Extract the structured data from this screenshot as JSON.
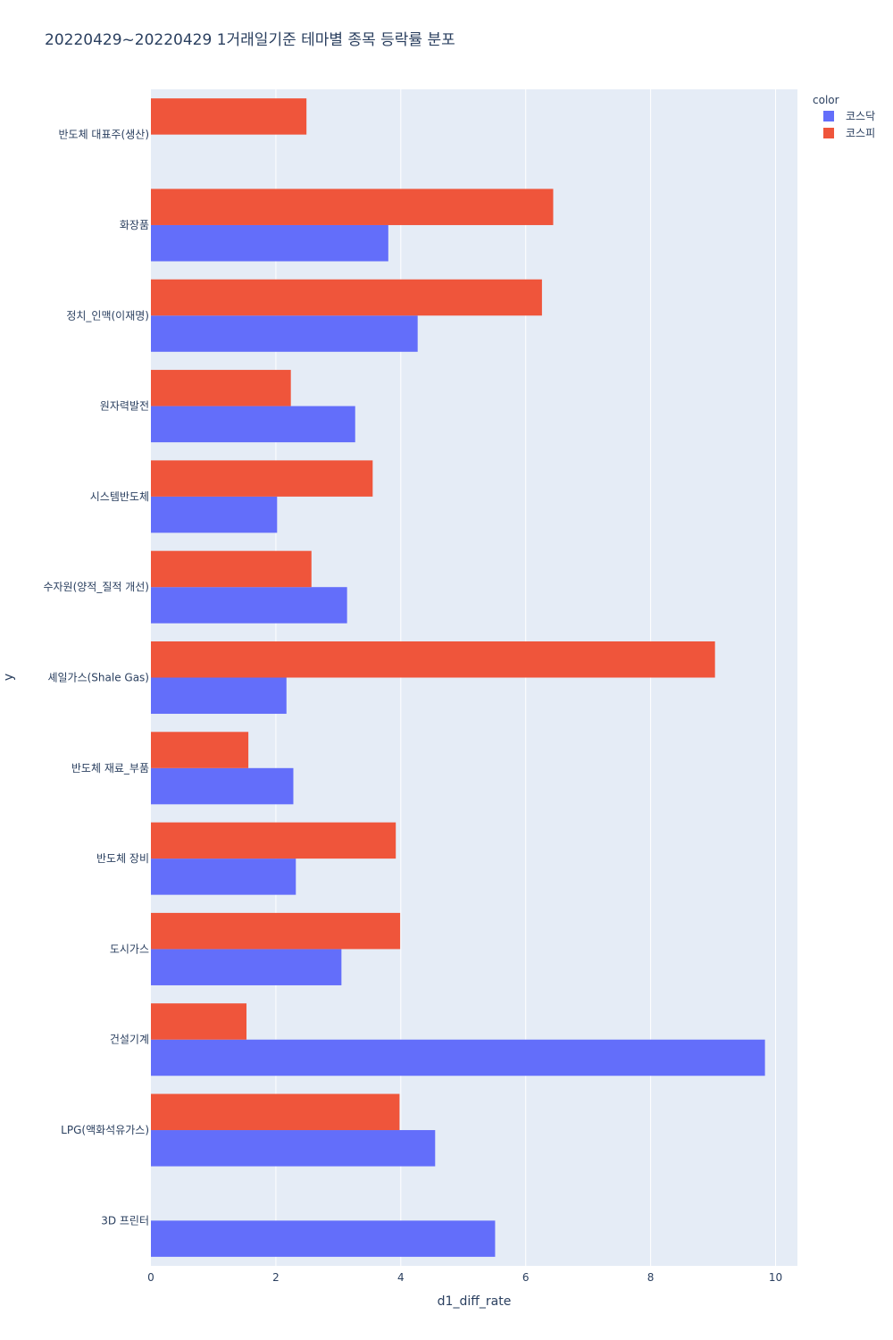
{
  "chart_data": {
    "type": "bar",
    "orientation": "horizontal",
    "barmode": "group",
    "title": "20220429~20220429 1거래일기준 테마별 종목 등락률 분포",
    "xlabel": "d1_diff_rate",
    "ylabel": "y",
    "xlim": [
      0,
      10.35
    ],
    "xticks": [
      0,
      2,
      4,
      6,
      8,
      10
    ],
    "grid": true,
    "legend": {
      "title": "color",
      "position": "top-right"
    },
    "categories": [
      "반도체 대표주(생산)",
      "화장품",
      "정치_인맥(이재명)",
      "원자력발전",
      "시스템반도체",
      "수자원(양적_질적 개선)",
      "셰일가스(Shale Gas)",
      "반도체 재료_부품",
      "반도체 장비",
      "도시가스",
      "건설기계",
      "LPG(액화석유가스)",
      "3D 프린터"
    ],
    "series": [
      {
        "name": "코스닥",
        "color": "#636efa",
        "values": [
          null,
          3.8,
          4.27,
          3.27,
          2.02,
          3.14,
          2.17,
          2.28,
          2.32,
          3.05,
          9.83,
          4.55,
          5.51
        ]
      },
      {
        "name": "코스피",
        "color": "#ef553b",
        "values": [
          2.49,
          6.44,
          6.26,
          2.24,
          3.55,
          2.57,
          9.03,
          1.56,
          3.92,
          3.99,
          1.53,
          3.98,
          null
        ]
      }
    ]
  }
}
